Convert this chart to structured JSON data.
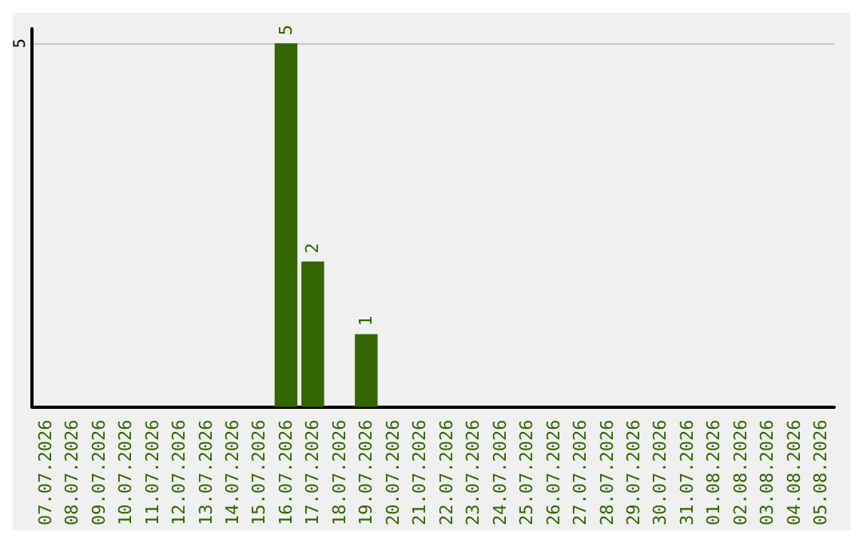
{
  "chart_data": {
    "type": "bar",
    "categories": [
      "07.07.2026",
      "08.07.2026",
      "09.07.2026",
      "10.07.2026",
      "11.07.2026",
      "12.07.2026",
      "13.07.2026",
      "14.07.2026",
      "15.07.2026",
      "16.07.2026",
      "17.07.2026",
      "18.07.2026",
      "19.07.2026",
      "20.07.2026",
      "21.07.2026",
      "22.07.2026",
      "23.07.2026",
      "24.07.2026",
      "25.07.2026",
      "26.07.2026",
      "27.07.2026",
      "28.07.2026",
      "29.07.2026",
      "30.07.2026",
      "31.07.2026",
      "01.08.2026",
      "02.08.2026",
      "03.08.2026",
      "04.08.2026",
      "05.08.2026"
    ],
    "values": [
      0,
      0,
      0,
      0,
      0,
      0,
      0,
      0,
      0,
      5,
      2,
      0,
      1,
      0,
      0,
      0,
      0,
      0,
      0,
      0,
      0,
      0,
      0,
      0,
      0,
      0,
      0,
      0,
      0,
      0
    ],
    "value_labels": [
      null,
      null,
      null,
      null,
      null,
      null,
      null,
      null,
      null,
      "5",
      "2",
      null,
      "1",
      null,
      null,
      null,
      null,
      null,
      null,
      null,
      null,
      null,
      null,
      null,
      null,
      null,
      null,
      null,
      null,
      null
    ],
    "color": "#336600",
    "ylim": [
      0,
      5.2
    ],
    "yticks": [
      5
    ],
    "grid": "y"
  }
}
